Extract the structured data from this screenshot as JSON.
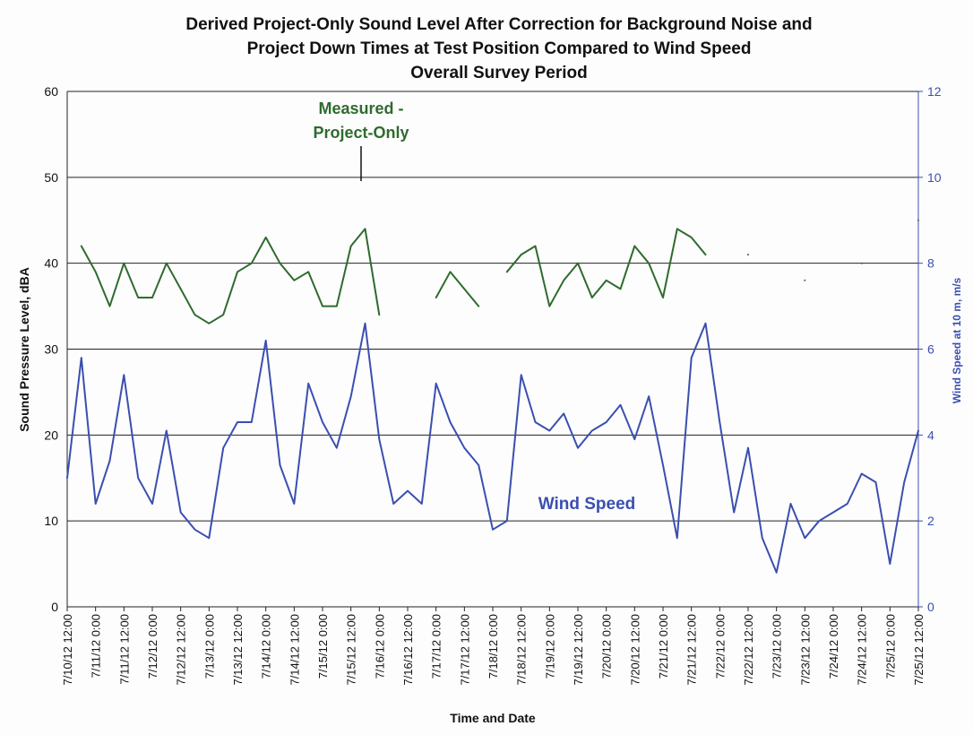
{
  "chart_data": {
    "type": "line",
    "title": [
      "Derived Project-Only Sound Level After Correction for Background Noise and",
      "Project Down Times at Test Position Compared to Wind Speed",
      "Overall Survey Period"
    ],
    "x_label": "Time and Date",
    "y_label": "Sound Pressure Level, dBA",
    "y2_label": "Wind Speed at 10 m, m/s",
    "categories": [
      "7/10/12 12:00",
      null,
      "7/11/12 0:00",
      null,
      "7/11/12 12:00",
      null,
      "7/12/12 0:00",
      null,
      "7/12/12 12:00",
      null,
      "7/13/12 0:00",
      null,
      "7/13/12 12:00",
      null,
      "7/14/12 0:00",
      null,
      "7/14/12 12:00",
      null,
      "7/15/12 0:00",
      null,
      "7/15/12 12:00",
      null,
      "7/16/12 0:00",
      null,
      "7/16/12 12:00",
      null,
      "7/17/12 0:00",
      null,
      "7/17/12 12:00",
      null,
      "7/18/12 0:00",
      null,
      "7/18/12 12:00",
      null,
      "7/19/12 0:00",
      null,
      "7/19/12 12:00",
      null,
      "7/20/12 0:00",
      null,
      "7/20/12 12:00",
      null,
      "7/21/12 0:00",
      null,
      "7/21/12 12:00",
      null,
      "7/22/12 0:00",
      null,
      "7/22/12 12:00",
      null,
      "7/23/12 0:00",
      null,
      "7/23/12 12:00",
      null,
      "7/24/12 0:00",
      null,
      "7/24/12 12:00",
      null,
      "7/25/12 0:00",
      null,
      "7/25/12 12:00"
    ],
    "series": [
      {
        "name": "Measured - Project-Only",
        "color": "#2e6b2e",
        "axis": "y",
        "values": [
          null,
          42,
          39,
          35,
          40,
          36,
          36,
          40,
          37,
          34,
          33,
          34,
          39,
          40,
          43,
          40,
          38,
          39,
          35,
          35,
          42,
          44,
          34,
          null,
          null,
          null,
          36,
          39,
          37,
          35,
          null,
          39,
          41,
          42,
          35,
          38,
          40,
          36,
          38,
          37,
          42,
          40,
          36,
          44,
          43,
          41,
          null,
          null,
          41,
          null,
          null,
          null,
          38,
          null,
          null,
          null,
          40,
          null,
          null,
          null,
          45
        ]
      },
      {
        "name": "Wind Speed",
        "color": "#3a4fb0",
        "axis": "y2",
        "values": [
          3.0,
          5.8,
          2.4,
          3.4,
          5.4,
          3.0,
          2.4,
          4.1,
          2.2,
          1.8,
          1.6,
          3.7,
          4.3,
          4.3,
          6.2,
          3.3,
          2.4,
          5.2,
          4.3,
          3.7,
          4.9,
          6.6,
          3.9,
          2.4,
          2.7,
          2.4,
          5.2,
          4.3,
          3.7,
          3.3,
          1.8,
          2.0,
          5.4,
          4.3,
          4.1,
          4.5,
          3.7,
          4.1,
          4.3,
          4.7,
          3.9,
          4.9,
          3.3,
          1.6,
          5.8,
          6.6,
          4.3,
          2.2,
          3.7,
          1.6,
          0.8,
          2.4,
          1.6,
          2.0,
          2.2,
          2.4,
          3.1,
          2.9,
          1.0,
          2.9,
          4.1
        ]
      }
    ],
    "annotations": [
      [
        "Measured -",
        "Project-Only"
      ],
      [
        "Wind Speed"
      ]
    ],
    "ylim": [
      0,
      60
    ],
    "yticks": [
      0,
      10,
      20,
      30,
      40,
      50,
      60
    ],
    "y2lim": [
      0,
      12
    ],
    "y2ticks": [
      0,
      2,
      4,
      6,
      8,
      10,
      12
    ],
    "grid": true
  }
}
